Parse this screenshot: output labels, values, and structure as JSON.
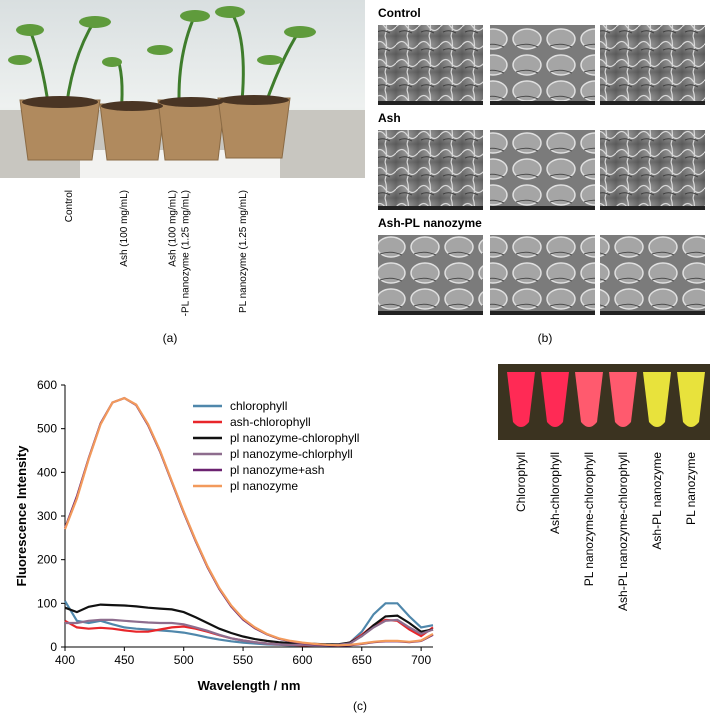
{
  "panel_a": {
    "labels": [
      [
        "Control"
      ],
      [
        "Ash (100 mg/mL)"
      ],
      [
        "Ash (100 mg/mL)",
        "-PL nanozyme (1.25 mg/mL)"
      ],
      [
        "PL nanozyme (1.25 mg/mL)"
      ]
    ],
    "caption": "(a)"
  },
  "panel_b": {
    "rows": [
      "Control",
      "Ash",
      "Ash-PL nanozyme"
    ],
    "caption": "(b)"
  },
  "panel_c": {
    "tube_labels": [
      "Chlorophyll",
      "Ash-chlorophyll",
      "PL nanozyme-chlorophyll",
      "Ash-PL nanozyme-chlorophyll",
      "Ash-PL nanozyme",
      "PL nanozyme"
    ],
    "caption": "(c)"
  },
  "chart_data": {
    "type": "line",
    "xlabel": "Wavelength / nm",
    "ylabel": "Fluorescence Intensity",
    "x": [
      400,
      410,
      420,
      430,
      440,
      450,
      460,
      470,
      480,
      490,
      500,
      510,
      520,
      530,
      540,
      550,
      560,
      570,
      580,
      590,
      600,
      610,
      620,
      630,
      640,
      650,
      660,
      670,
      680,
      690,
      700,
      710
    ],
    "xlim": [
      400,
      710
    ],
    "ylim": [
      0,
      600
    ],
    "xticks": [
      400,
      450,
      500,
      550,
      600,
      650,
      700
    ],
    "yticks": [
      0,
      100,
      200,
      300,
      400,
      500,
      600
    ],
    "grid": false,
    "series": [
      {
        "name": "chlorophyll",
        "color": "#4f87ab",
        "values": [
          105,
          60,
          55,
          60,
          52,
          45,
          42,
          40,
          38,
          36,
          33,
          28,
          22,
          17,
          13,
          10,
          8,
          6,
          5,
          4,
          4,
          3,
          3,
          4,
          10,
          35,
          75,
          100,
          100,
          70,
          45,
          50
        ]
      },
      {
        "name": "ash-chlorophyll",
        "color": "#e8262a",
        "values": [
          60,
          45,
          42,
          44,
          42,
          38,
          35,
          35,
          40,
          45,
          47,
          42,
          35,
          27,
          20,
          15,
          11,
          8,
          6,
          5,
          4,
          4,
          4,
          5,
          10,
          28,
          50,
          62,
          60,
          40,
          25,
          45
        ]
      },
      {
        "name": "pl nanozyme-chlorophyll",
        "color": "#111111",
        "values": [
          90,
          80,
          92,
          97,
          96,
          95,
          93,
          90,
          88,
          86,
          80,
          68,
          55,
          42,
          32,
          24,
          18,
          14,
          11,
          9,
          8,
          7,
          6,
          6,
          10,
          25,
          50,
          70,
          72,
          55,
          35,
          40
        ]
      },
      {
        "name": "pl nanozyme-chlorphyll",
        "color": "#8e6d8e",
        "values": [
          55,
          55,
          60,
          62,
          62,
          60,
          58,
          56,
          55,
          55,
          52,
          45,
          37,
          28,
          20,
          15,
          11,
          8,
          6,
          5,
          5,
          4,
          4,
          5,
          8,
          25,
          45,
          60,
          62,
          45,
          30,
          40
        ]
      },
      {
        "name": "pl nanozyme+ash",
        "color": "#6b2270",
        "values": [
          272,
          345,
          432,
          512,
          560,
          570,
          554,
          508,
          448,
          378,
          308,
          243,
          183,
          133,
          93,
          63,
          43,
          29,
          19,
          13,
          9,
          6,
          4,
          3,
          4,
          7,
          11,
          13,
          13,
          11,
          14,
          28
        ]
      },
      {
        "name": "pl nanozyme",
        "color": "#f29a5c",
        "values": [
          270,
          340,
          430,
          510,
          560,
          570,
          555,
          510,
          450,
          380,
          310,
          245,
          185,
          135,
          95,
          65,
          45,
          30,
          20,
          14,
          10,
          7,
          5,
          4,
          5,
          8,
          12,
          14,
          14,
          12,
          15,
          30
        ]
      }
    ]
  }
}
